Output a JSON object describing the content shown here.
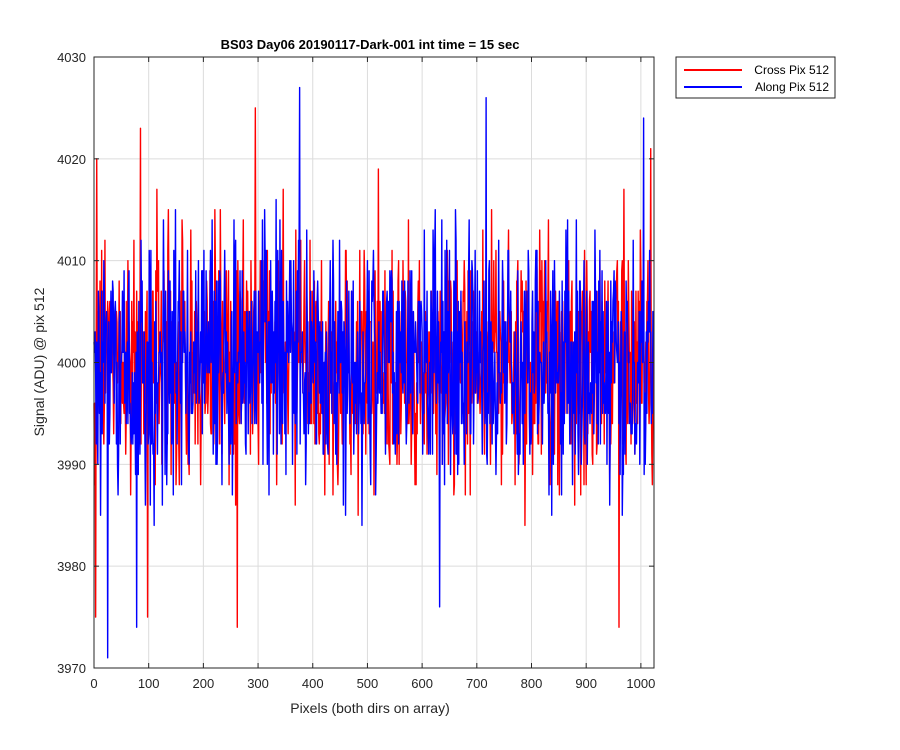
{
  "chart_data": {
    "type": "line",
    "title": "BS03 Day06 20190117-Dark-001 int time = 15 sec",
    "xlabel": "Pixels (both dirs on array)",
    "ylabel": "Signal (ADU) @ pix 512",
    "xlim": [
      0,
      1024
    ],
    "ylim": [
      3970,
      4030
    ],
    "xticks": [
      0,
      100,
      200,
      300,
      400,
      500,
      600,
      700,
      800,
      900,
      1000
    ],
    "yticks": [
      3970,
      3980,
      3990,
      4000,
      4010,
      4020,
      4030
    ],
    "grid": true,
    "legend_position": "outside-top-right",
    "series": [
      {
        "name": "Cross Pix 512",
        "color": "#ff0000",
        "noise": {
          "count": 1024,
          "mean": 4000,
          "min": 3974,
          "max": 4025
        },
        "key_points": [
          {
            "x": 3,
            "y": 3975
          },
          {
            "x": 5,
            "y": 4020
          },
          {
            "x": 85,
            "y": 4023
          },
          {
            "x": 98,
            "y": 3975
          },
          {
            "x": 262,
            "y": 3974
          },
          {
            "x": 295,
            "y": 4025
          },
          {
            "x": 960,
            "y": 3974
          },
          {
            "x": 1018,
            "y": 4021
          }
        ]
      },
      {
        "name": "Along Pix 512",
        "color": "#0000ff",
        "noise": {
          "count": 1024,
          "mean": 4000,
          "min": 3971,
          "max": 4027
        },
        "key_points": [
          {
            "x": 25,
            "y": 3971
          },
          {
            "x": 78,
            "y": 3974
          },
          {
            "x": 376,
            "y": 4027
          },
          {
            "x": 632,
            "y": 3976
          },
          {
            "x": 717,
            "y": 4026
          },
          {
            "x": 1005,
            "y": 4024
          }
        ]
      }
    ]
  }
}
